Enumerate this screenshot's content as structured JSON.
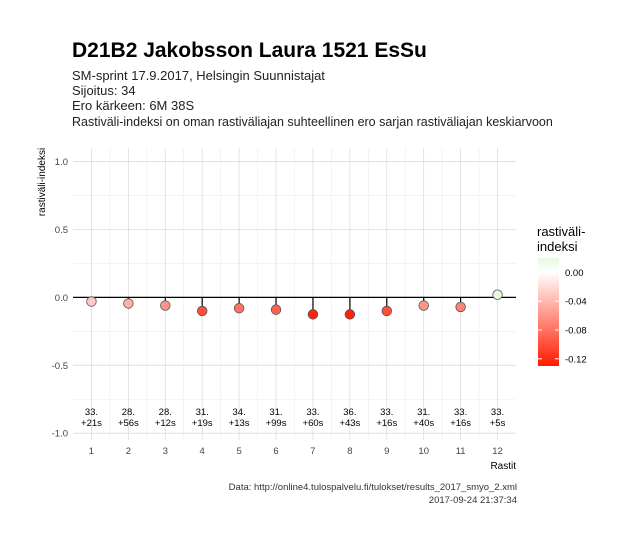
{
  "chart_data": {
    "type": "scatter",
    "title": "D21B2 Jakobsson Laura 1521 EsSu",
    "subtitle_lines": [
      "SM-sprint 17.9.2017, Helsingin Suunnistajat",
      "Sijoitus: 34",
      "Ero kärkeen: 6M 38S",
      "Rastiväli-indeksi on oman rastiväliajan suhteellinen ero sarjan rastiväliajan keskiarvoon"
    ],
    "xlabel": "Rastit",
    "ylabel": "rastiväli-indeksi",
    "xlim": [
      0.5,
      12.5
    ],
    "ylim": [
      -1.05,
      1.1
    ],
    "x_ticks": [
      1,
      2,
      3,
      4,
      5,
      6,
      7,
      8,
      9,
      10,
      11,
      12
    ],
    "y_ticks": [
      1.0,
      0.5,
      0.0,
      -0.5,
      -1.0
    ],
    "y_tick_labels": [
      "1.0",
      "0.5",
      "0.0",
      "-0.5",
      "-1.0"
    ],
    "grid": true,
    "zero_line": 0,
    "points": [
      {
        "x": 1,
        "y": -0.03,
        "label_rank": "33.",
        "label_diff": "+21s"
      },
      {
        "x": 2,
        "y": -0.045,
        "label_rank": "28.",
        "label_diff": "+56s"
      },
      {
        "x": 3,
        "y": -0.06,
        "label_rank": "28.",
        "label_diff": "+12s"
      },
      {
        "x": 4,
        "y": -0.1,
        "label_rank": "31.",
        "label_diff": "+19s"
      },
      {
        "x": 5,
        "y": -0.08,
        "label_rank": "34.",
        "label_diff": "+13s"
      },
      {
        "x": 6,
        "y": -0.09,
        "label_rank": "31.",
        "label_diff": "+99s"
      },
      {
        "x": 7,
        "y": -0.125,
        "label_rank": "33.",
        "label_diff": "+60s"
      },
      {
        "x": 8,
        "y": -0.125,
        "label_rank": "36.",
        "label_diff": "+43s"
      },
      {
        "x": 9,
        "y": -0.1,
        "label_rank": "33.",
        "label_diff": "+16s"
      },
      {
        "x": 10,
        "y": -0.06,
        "label_rank": "31.",
        "label_diff": "+40s"
      },
      {
        "x": 11,
        "y": -0.07,
        "label_rank": "33.",
        "label_diff": "+16s"
      },
      {
        "x": 12,
        "y": 0.02,
        "label_rank": "33.",
        "label_diff": "+5s"
      }
    ],
    "legend": {
      "title_lines": [
        "rastiväli-",
        "indeksi"
      ],
      "placement": "right",
      "range": [
        -0.13,
        0.02
      ],
      "ticks": [
        0.0,
        -0.04,
        -0.08,
        -0.12
      ],
      "tick_labels": [
        "0.00",
        "-0.04",
        "-0.08",
        "-0.12"
      ],
      "colors": {
        "high": "#e8f8e0",
        "mid": "#ffffff",
        "low": "#ff1a00"
      }
    },
    "caption_lines": [
      "Data: http://online4.tulospalvelu.fi/tulokset/results_2017_smyo_2.xml",
      "2017-09-24 21:37:34"
    ]
  }
}
